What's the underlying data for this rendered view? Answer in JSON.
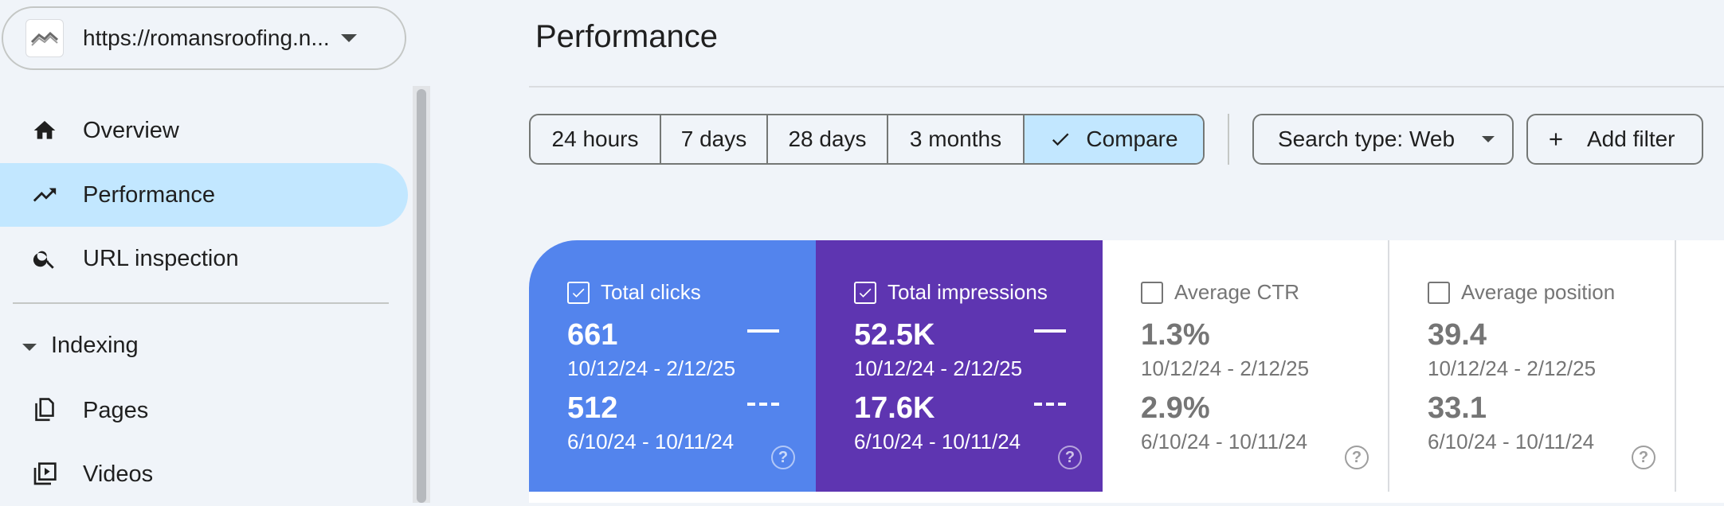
{
  "property": {
    "url": "https://romansroofing.n...",
    "favicon_icon": "roof-icon"
  },
  "sidebar": {
    "items": [
      {
        "label": "Overview",
        "icon": "home-icon"
      },
      {
        "label": "Performance",
        "icon": "trending-up-icon",
        "active": true
      },
      {
        "label": "URL inspection",
        "icon": "search-icon"
      }
    ],
    "section": {
      "label": "Indexing"
    },
    "section_items": [
      {
        "label": "Pages",
        "icon": "pages-icon"
      },
      {
        "label": "Videos",
        "icon": "video-icon"
      }
    ]
  },
  "header": {
    "title": "Performance"
  },
  "date_range": {
    "options": [
      "24 hours",
      "7 days",
      "28 days",
      "3 months",
      "Compare"
    ],
    "selected": "Compare"
  },
  "filters": {
    "search_type": "Search type: Web",
    "add_filter": "Add filter"
  },
  "metrics": [
    {
      "label": "Total clicks",
      "checked": true,
      "current_value": "661",
      "current_range": "10/12/24 - 2/12/25",
      "previous_value": "512",
      "previous_range": "6/10/24 - 10/11/24",
      "color": "#5384ed"
    },
    {
      "label": "Total impressions",
      "checked": true,
      "current_value": "52.5K",
      "current_range": "10/12/24 - 2/12/25",
      "previous_value": "17.6K",
      "previous_range": "6/10/24 - 10/11/24",
      "color": "#5e35b1"
    },
    {
      "label": "Average CTR",
      "checked": false,
      "current_value": "1.3%",
      "current_range": "10/12/24 - 2/12/25",
      "previous_value": "2.9%",
      "previous_range": "6/10/24 - 10/11/24"
    },
    {
      "label": "Average position",
      "checked": false,
      "current_value": "39.4",
      "current_range": "10/12/24 - 2/12/25",
      "previous_value": "33.1",
      "previous_range": "6/10/24 - 10/11/24"
    }
  ],
  "help_glyph": "?"
}
